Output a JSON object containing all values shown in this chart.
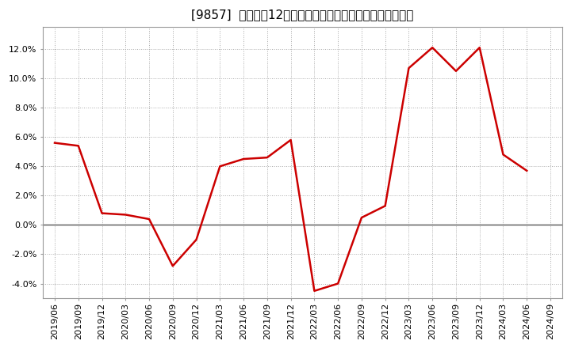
{
  "title": "[9857]  売上高の12か月移動合計の対前年同期増減率の推移",
  "line_color": "#cc0000",
  "background_color": "#ffffff",
  "plot_bg_color": "#ffffff",
  "grid_color": "#aaaaaa",
  "zero_line_color": "#555555",
  "ylim": [
    -0.05,
    0.135
  ],
  "yticks": [
    -0.04,
    -0.02,
    0.0,
    0.02,
    0.04,
    0.06,
    0.08,
    0.1,
    0.12
  ],
  "dates": [
    "2019/06",
    "2019/09",
    "2019/12",
    "2020/03",
    "2020/06",
    "2020/09",
    "2020/12",
    "2021/03",
    "2021/06",
    "2021/09",
    "2021/12",
    "2022/03",
    "2022/06",
    "2022/09",
    "2022/12",
    "2023/03",
    "2023/06",
    "2023/09",
    "2023/12",
    "2024/03",
    "2024/06",
    "2024/09"
  ],
  "values": [
    0.056,
    0.054,
    0.008,
    0.007,
    0.004,
    -0.028,
    -0.01,
    0.04,
    0.045,
    0.046,
    0.058,
    -0.045,
    -0.04,
    0.005,
    0.013,
    0.107,
    0.121,
    0.105,
    0.121,
    0.048,
    0.037,
    null
  ],
  "title_fontsize": 11,
  "tick_fontsize": 8,
  "line_width": 1.8
}
